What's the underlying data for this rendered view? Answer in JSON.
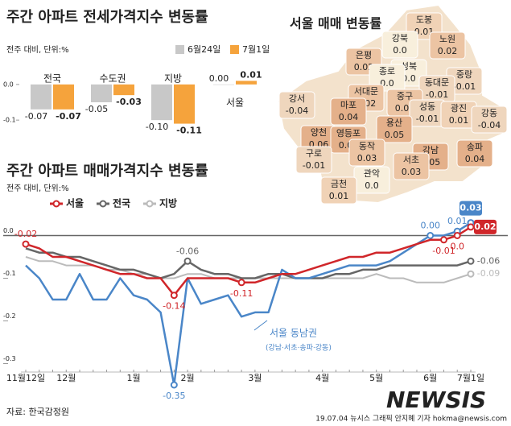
{
  "chart_data": [
    {
      "type": "bar",
      "title": "주간 아파트 전세가격지수 변동률",
      "subtitle": "전주 대비, 단위:%",
      "categories": [
        "전국",
        "수도권",
        "지방",
        "서울"
      ],
      "series": [
        {
          "name": "6월24일",
          "color": "#c8c8c8",
          "values": [
            -0.07,
            -0.05,
            -0.1,
            0.0
          ],
          "value_labels": [
            "-0.07",
            "-0.05",
            "-0.10",
            "0.00"
          ]
        },
        {
          "name": "7월1일",
          "color": "#f5a33c",
          "values": [
            -0.07,
            -0.03,
            -0.11,
            0.01
          ],
          "value_labels": [
            "-0.07",
            "-0.03",
            "-0.11",
            "0.01"
          ]
        }
      ],
      "ylim": [
        -0.12,
        0.02
      ],
      "yticks": [
        {
          "value": 0,
          "label": "0.0"
        },
        -0.1
      ]
    },
    {
      "type": "map",
      "title": "서울 매매 변동률",
      "categories": [
        "도봉",
        "노원",
        "강북",
        "은평",
        "성북",
        "종로",
        "중랑",
        "동대문",
        "서대문",
        "중구",
        "마포",
        "성동",
        "광진",
        "강서",
        "강동",
        "용산",
        "양천",
        "영등포",
        "동작",
        "강남",
        "송파",
        "구로",
        "서초",
        "관악",
        "금천"
      ],
      "values": [
        0.01,
        0.02,
        0.0,
        0.02,
        0.0,
        0.0,
        -0.01,
        -0.01,
        0.02,
        0.02,
        0.04,
        -0.01,
        0.01,
        -0.04,
        -0.04,
        0.05,
        0.06,
        0.06,
        0.03,
        0.05,
        0.04,
        -0.01,
        0.03,
        0.0,
        0.01
      ],
      "value_labels": [
        "0.01",
        "0.02",
        "0.0",
        "0.02",
        "0.0",
        "0.0",
        "-0.01",
        "-0.01",
        "0.02",
        "0.02",
        "0.04",
        "-0.01",
        "0.01",
        "-0.04",
        "-0.04",
        "0.05",
        "0.06",
        "0.06",
        "0.03",
        "0.05",
        "0.04",
        "-0.01",
        "0.03",
        "0.0",
        "0.01"
      ]
    },
    {
      "type": "line",
      "title": "주간 아파트 매매가격지수 변동률",
      "subtitle": "전주 대비, 단위:%",
      "categories": [
        "11월12일",
        null,
        null,
        "12월",
        null,
        null,
        null,
        null,
        "1월",
        null,
        null,
        null,
        "2월",
        null,
        null,
        null,
        null,
        "3월",
        null,
        null,
        null,
        null,
        "4월",
        null,
        null,
        null,
        "5월",
        null,
        null,
        null,
        "6월",
        null,
        null,
        "7월1일"
      ],
      "series": [
        {
          "name": "서울",
          "color": "#d0262a",
          "values": [
            -0.02,
            -0.03,
            -0.05,
            -0.05,
            -0.06,
            -0.07,
            -0.08,
            -0.09,
            -0.09,
            -0.1,
            -0.1,
            -0.14,
            -0.1,
            -0.1,
            -0.1,
            -0.1,
            -0.11,
            -0.11,
            -0.1,
            -0.09,
            -0.09,
            -0.08,
            -0.07,
            -0.06,
            -0.05,
            -0.05,
            -0.04,
            -0.04,
            -0.03,
            -0.02,
            -0.01,
            -0.01,
            0.0,
            0.02
          ],
          "value_labels": [
            "-0.02",
            null,
            null,
            null,
            null,
            null,
            null,
            null,
            null,
            null,
            null,
            "-0.14",
            null,
            null,
            null,
            null,
            "-0.11",
            null,
            null,
            null,
            null,
            null,
            null,
            null,
            null,
            null,
            null,
            null,
            null,
            null,
            null,
            "-0.01",
            "0.0",
            "0.02"
          ]
        },
        {
          "name": "전국",
          "color": "#666666",
          "values": [
            -0.03,
            -0.04,
            -0.04,
            -0.05,
            -0.05,
            -0.06,
            -0.07,
            -0.08,
            -0.08,
            -0.09,
            -0.1,
            -0.09,
            -0.06,
            -0.08,
            -0.09,
            -0.09,
            -0.1,
            -0.1,
            -0.09,
            -0.09,
            -0.1,
            -0.1,
            -0.1,
            -0.09,
            -0.09,
            -0.08,
            -0.08,
            -0.07,
            -0.07,
            -0.07,
            -0.07,
            -0.07,
            -0.07,
            -0.06
          ],
          "value_labels": [
            null,
            null,
            null,
            null,
            null,
            null,
            null,
            null,
            null,
            null,
            null,
            null,
            "-0.06",
            null,
            null,
            null,
            null,
            null,
            null,
            null,
            null,
            null,
            null,
            null,
            null,
            null,
            null,
            null,
            null,
            null,
            null,
            null,
            null,
            "-0.06"
          ]
        },
        {
          "name": "지방",
          "color": "#bbbbbb",
          "values": [
            -0.05,
            -0.06,
            -0.06,
            -0.07,
            -0.07,
            -0.07,
            -0.08,
            -0.08,
            -0.09,
            -0.09,
            -0.1,
            -0.1,
            -0.09,
            -0.09,
            -0.1,
            -0.1,
            -0.1,
            -0.1,
            -0.1,
            -0.1,
            -0.1,
            -0.1,
            -0.1,
            -0.1,
            -0.1,
            -0.1,
            -0.09,
            -0.1,
            -0.1,
            -0.11,
            -0.11,
            -0.11,
            -0.1,
            -0.09
          ],
          "value_labels": [
            null,
            null,
            null,
            null,
            null,
            null,
            null,
            null,
            null,
            null,
            null,
            null,
            null,
            null,
            null,
            null,
            null,
            null,
            null,
            null,
            null,
            null,
            null,
            null,
            null,
            null,
            null,
            null,
            null,
            null,
            null,
            null,
            null,
            "-0.09"
          ]
        },
        {
          "name": "서울 동남권",
          "color": "#4a86c8",
          "legend": false,
          "values": [
            -0.07,
            -0.1,
            -0.15,
            -0.15,
            -0.09,
            -0.15,
            -0.15,
            -0.1,
            -0.14,
            -0.15,
            -0.18,
            -0.35,
            -0.1,
            -0.16,
            -0.15,
            -0.14,
            -0.19,
            -0.18,
            -0.18,
            -0.08,
            -0.1,
            -0.1,
            -0.09,
            -0.08,
            -0.07,
            -0.07,
            -0.07,
            -0.06,
            -0.04,
            -0.02,
            0.0,
            0.0,
            0.01,
            0.03
          ],
          "value_labels": [
            null,
            null,
            null,
            null,
            null,
            null,
            null,
            null,
            null,
            null,
            null,
            "-0.35",
            null,
            null,
            null,
            null,
            null,
            null,
            null,
            null,
            null,
            null,
            null,
            null,
            null,
            null,
            null,
            null,
            null,
            null,
            "0.00",
            null,
            "0.01",
            "0.03"
          ]
        }
      ],
      "annotation": "(강남·서초·송파·강동)",
      "ylim": [
        -0.35,
        0.05
      ],
      "yticks": [
        {
          "value": 0,
          "label": "0.0"
        },
        -0.1,
        -0.2,
        -0.3
      ]
    }
  ],
  "footer": {
    "source": "자료: 한국감정원",
    "credit": "19.07.04 뉴시스 그래픽 안지혜 기자 hokma@newsis.com",
    "watermark": "NEWSIS"
  }
}
